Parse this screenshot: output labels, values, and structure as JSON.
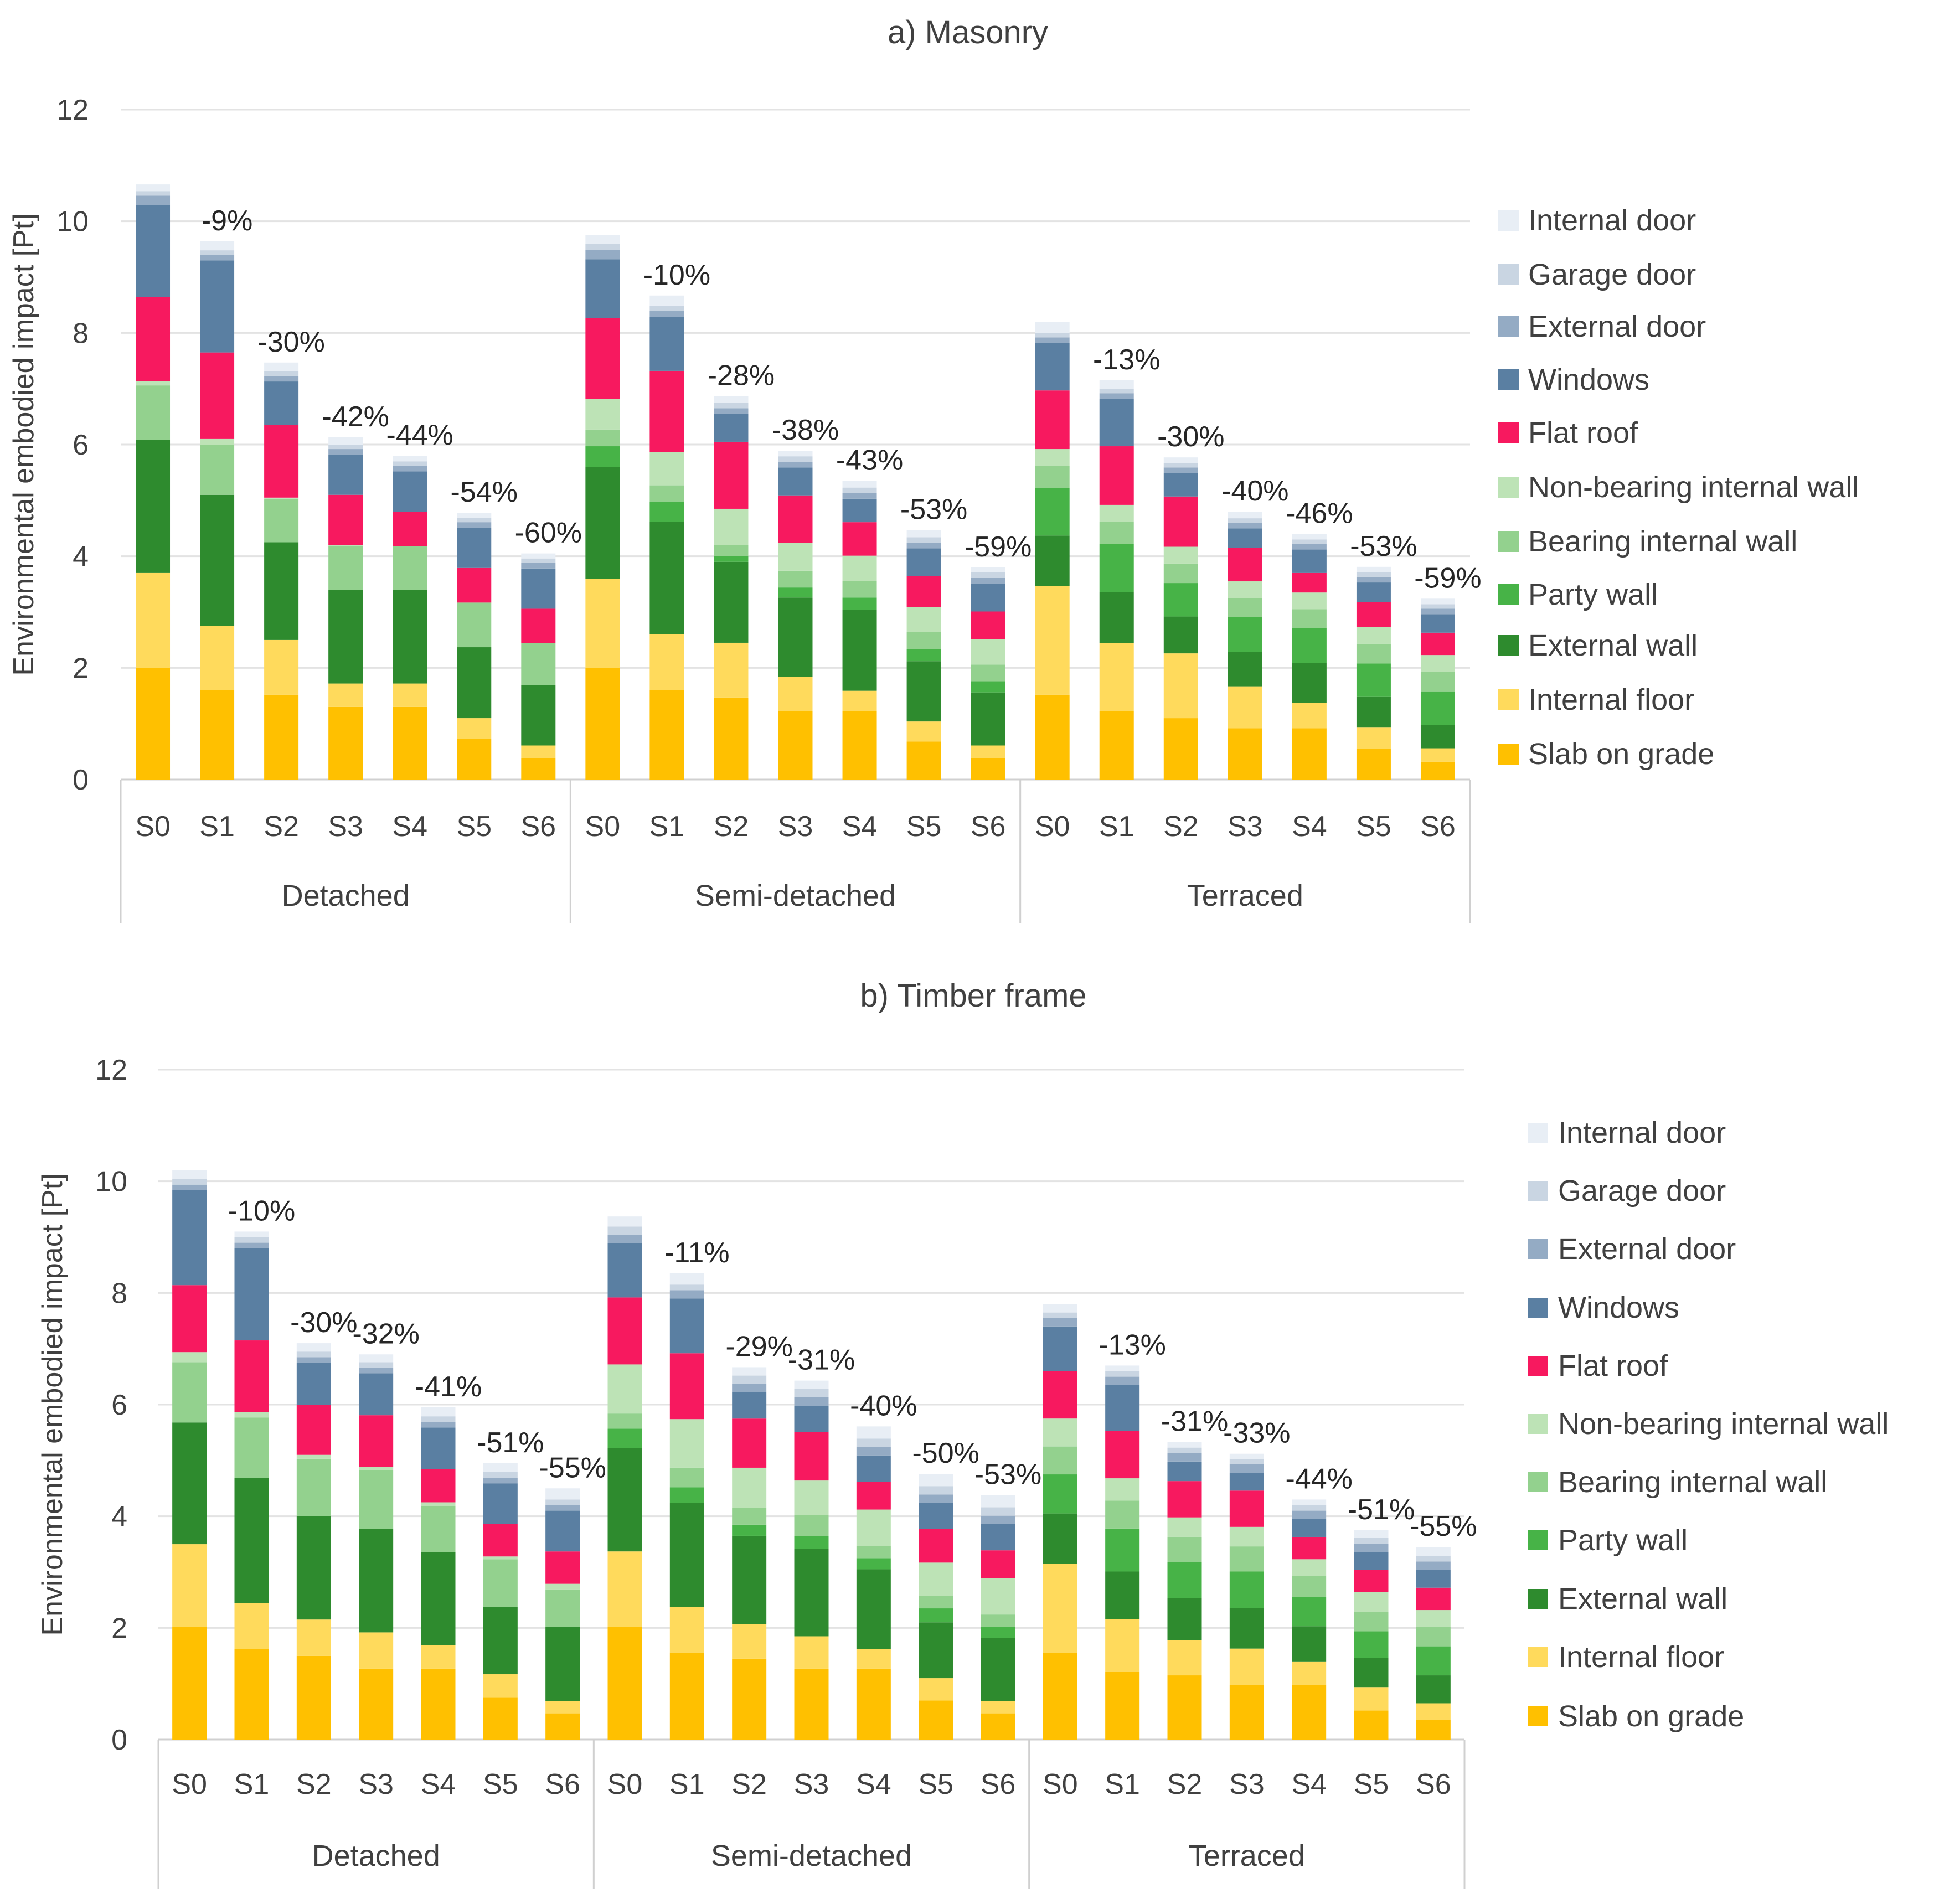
{
  "chart_data": [
    {
      "type": "bar",
      "stacked": true,
      "title": "a) Masonry",
      "ylabel": "Environmental embodied impact [Pt]",
      "ylim": [
        0,
        12
      ],
      "yticks": [
        0,
        2,
        4,
        6,
        8,
        10,
        12
      ],
      "grid": true,
      "legend_position": "right",
      "groups": [
        {
          "name": "Detached",
          "categories": [
            "S0",
            "S1",
            "S2",
            "S3",
            "S4",
            "S5",
            "S6"
          ]
        },
        {
          "name": "Semi-detached",
          "categories": [
            "S0",
            "S1",
            "S2",
            "S3",
            "S4",
            "S5",
            "S6"
          ]
        },
        {
          "name": "Terraced",
          "categories": [
            "S0",
            "S1",
            "S2",
            "S3",
            "S4",
            "S5",
            "S6"
          ]
        }
      ],
      "series": [
        {
          "name": "Slab on grade",
          "color": "#FFC000",
          "values": [
            2.0,
            1.6,
            1.52,
            1.3,
            1.3,
            0.73,
            0.38,
            2.0,
            1.6,
            1.47,
            1.22,
            1.22,
            0.68,
            0.38,
            1.52,
            1.22,
            1.1,
            0.92,
            0.92,
            0.55,
            0.32
          ]
        },
        {
          "name": "Internal floor",
          "color": "#FFDA5C",
          "values": [
            1.7,
            1.15,
            0.98,
            0.42,
            0.42,
            0.37,
            0.23,
            1.6,
            1.0,
            0.98,
            0.62,
            0.37,
            0.36,
            0.23,
            1.95,
            1.22,
            1.16,
            0.75,
            0.45,
            0.38,
            0.24
          ]
        },
        {
          "name": "External wall",
          "color": "#2E8B2E",
          "values": [
            2.38,
            2.35,
            1.75,
            1.68,
            1.68,
            1.27,
            1.08,
            2.0,
            2.02,
            1.45,
            1.42,
            1.45,
            1.08,
            0.95,
            0.9,
            0.92,
            0.66,
            0.62,
            0.72,
            0.55,
            0.42
          ]
        },
        {
          "name": "Party wall",
          "color": "#47B347",
          "values": [
            0,
            0,
            0,
            0,
            0,
            0,
            0,
            0.37,
            0.35,
            0.1,
            0.18,
            0.22,
            0.22,
            0.2,
            0.85,
            0.86,
            0.6,
            0.62,
            0.62,
            0.6,
            0.6
          ]
        },
        {
          "name": "Bearing internal wall",
          "color": "#93D18E",
          "values": [
            0.98,
            0.9,
            0.78,
            0.78,
            0.78,
            0.8,
            0.75,
            0.3,
            0.3,
            0.2,
            0.3,
            0.3,
            0.3,
            0.3,
            0.4,
            0.4,
            0.35,
            0.34,
            0.34,
            0.35,
            0.35
          ]
        },
        {
          "name": "Non-bearing internal wall",
          "color": "#BDE3B6",
          "values": [
            0.08,
            0.1,
            0.02,
            0.02,
            0,
            0,
            0,
            0.55,
            0.6,
            0.65,
            0.5,
            0.45,
            0.45,
            0.45,
            0.3,
            0.3,
            0.3,
            0.3,
            0.3,
            0.3,
            0.3
          ]
        },
        {
          "name": "Flat roof",
          "color": "#F7195F",
          "values": [
            1.5,
            1.55,
            1.3,
            0.9,
            0.62,
            0.62,
            0.62,
            1.45,
            1.45,
            1.2,
            0.85,
            0.6,
            0.55,
            0.5,
            1.05,
            1.05,
            0.9,
            0.6,
            0.35,
            0.45,
            0.4
          ]
        },
        {
          "name": "Windows",
          "color": "#5A7FA2",
          "values": [
            1.65,
            1.65,
            0.78,
            0.72,
            0.72,
            0.72,
            0.72,
            1.05,
            0.97,
            0.5,
            0.5,
            0.42,
            0.5,
            0.5,
            0.85,
            0.85,
            0.42,
            0.35,
            0.42,
            0.35,
            0.33
          ]
        },
        {
          "name": "External door",
          "color": "#94ABC4",
          "values": [
            0.17,
            0.1,
            0.1,
            0.1,
            0.1,
            0.1,
            0.1,
            0.17,
            0.1,
            0.1,
            0.1,
            0.1,
            0.1,
            0.1,
            0.1,
            0.1,
            0.1,
            0.1,
            0.1,
            0.1,
            0.1
          ]
        },
        {
          "name": "Garage door",
          "color": "#C9D5E2",
          "values": [
            0.08,
            0.08,
            0.08,
            0.08,
            0.08,
            0.08,
            0.08,
            0.1,
            0.1,
            0.1,
            0.1,
            0.1,
            0.1,
            0.1,
            0.08,
            0.08,
            0.08,
            0.08,
            0.08,
            0.08,
            0.08
          ]
        },
        {
          "name": "Internal door",
          "color": "#E8EEF5",
          "values": [
            0.12,
            0.16,
            0.16,
            0.13,
            0.1,
            0.09,
            0.09,
            0.16,
            0.18,
            0.12,
            0.1,
            0.12,
            0.13,
            0.09,
            0.2,
            0.15,
            0.1,
            0.12,
            0.1,
            0.1,
            0.1
          ]
        }
      ],
      "annotations": [
        "",
        "-9%",
        "-30%",
        "-42%",
        "-44%",
        "-54%",
        "-60%",
        "",
        "-10%",
        "-28%",
        "-38%",
        "-43%",
        "-53%",
        "-59%",
        "",
        "-13%",
        "-30%",
        "-40%",
        "-46%",
        "-53%",
        "-59%"
      ]
    },
    {
      "type": "bar",
      "stacked": true,
      "title": "b) Timber frame",
      "ylabel": "Environmental embodied impact [Pt]",
      "ylim": [
        0,
        12
      ],
      "yticks": [
        0,
        2,
        4,
        6,
        8,
        10,
        12
      ],
      "grid": true,
      "legend_position": "right",
      "groups": [
        {
          "name": "Detached",
          "categories": [
            "S0",
            "S1",
            "S2",
            "S3",
            "S4",
            "S5",
            "S6"
          ]
        },
        {
          "name": "Semi-detached",
          "categories": [
            "S0",
            "S1",
            "S2",
            "S3",
            "S4",
            "S5",
            "S6"
          ]
        },
        {
          "name": "Terraced",
          "categories": [
            "S0",
            "S1",
            "S2",
            "S3",
            "S4",
            "S5",
            "S6"
          ]
        }
      ],
      "series": [
        {
          "name": "Slab on grade",
          "color": "#FFC000",
          "values": [
            2.02,
            1.62,
            1.5,
            1.27,
            1.27,
            0.75,
            0.47,
            2.02,
            1.56,
            1.45,
            1.27,
            1.27,
            0.7,
            0.47,
            1.55,
            1.21,
            1.15,
            0.98,
            0.98,
            0.52,
            0.35
          ]
        },
        {
          "name": "Internal floor",
          "color": "#FFDA5C",
          "values": [
            1.48,
            0.82,
            0.65,
            0.65,
            0.42,
            0.42,
            0.22,
            1.35,
            0.82,
            0.62,
            0.58,
            0.35,
            0.4,
            0.22,
            1.6,
            0.95,
            0.63,
            0.65,
            0.42,
            0.42,
            0.3
          ]
        },
        {
          "name": "External wall",
          "color": "#2E8B2E",
          "values": [
            2.18,
            2.25,
            1.85,
            1.85,
            1.67,
            1.21,
            1.33,
            1.85,
            1.86,
            1.58,
            1.57,
            1.43,
            1.0,
            1.13,
            0.9,
            0.85,
            0.75,
            0.73,
            0.63,
            0.52,
            0.5
          ]
        },
        {
          "name": "Party wall",
          "color": "#47B347",
          "values": [
            0,
            0,
            0,
            0,
            0,
            0,
            0,
            0.35,
            0.28,
            0.2,
            0.22,
            0.2,
            0.25,
            0.2,
            0.7,
            0.77,
            0.65,
            0.65,
            0.52,
            0.48,
            0.52
          ]
        },
        {
          "name": "Bearing internal wall",
          "color": "#93D18E",
          "values": [
            1.08,
            1.08,
            1.03,
            1.06,
            0.82,
            0.85,
            0.67,
            0.27,
            0.35,
            0.3,
            0.38,
            0.22,
            0.22,
            0.22,
            0.5,
            0.5,
            0.45,
            0.45,
            0.38,
            0.35,
            0.35
          ]
        },
        {
          "name": "Non-bearing internal wall",
          "color": "#BDE3B6",
          "values": [
            0.18,
            0.1,
            0.07,
            0.05,
            0.07,
            0.05,
            0.1,
            0.88,
            0.87,
            0.72,
            0.62,
            0.65,
            0.6,
            0.65,
            0.5,
            0.4,
            0.35,
            0.35,
            0.3,
            0.35,
            0.3
          ]
        },
        {
          "name": "Flat roof",
          "color": "#F7195F",
          "values": [
            1.2,
            1.28,
            0.9,
            0.93,
            0.59,
            0.58,
            0.58,
            1.2,
            1.18,
            0.88,
            0.87,
            0.5,
            0.6,
            0.5,
            0.85,
            0.85,
            0.65,
            0.65,
            0.4,
            0.4,
            0.4
          ]
        },
        {
          "name": "Windows",
          "color": "#5A7FA2",
          "values": [
            1.7,
            1.65,
            0.75,
            0.75,
            0.75,
            0.73,
            0.73,
            0.97,
            0.98,
            0.47,
            0.47,
            0.47,
            0.47,
            0.47,
            0.8,
            0.82,
            0.35,
            0.32,
            0.32,
            0.32,
            0.32
          ]
        },
        {
          "name": "External door",
          "color": "#94ABC4",
          "values": [
            0.1,
            0.1,
            0.1,
            0.1,
            0.1,
            0.1,
            0.1,
            0.15,
            0.15,
            0.15,
            0.15,
            0.15,
            0.15,
            0.15,
            0.15,
            0.15,
            0.15,
            0.15,
            0.15,
            0.15,
            0.15
          ]
        },
        {
          "name": "Garage door",
          "color": "#C9D5E2",
          "values": [
            0.1,
            0.1,
            0.1,
            0.1,
            0.1,
            0.1,
            0.1,
            0.15,
            0.1,
            0.15,
            0.15,
            0.15,
            0.15,
            0.15,
            0.1,
            0.1,
            0.1,
            0.1,
            0.1,
            0.1,
            0.1
          ]
        },
        {
          "name": "Internal door",
          "color": "#E8EEF5",
          "values": [
            0.16,
            0.1,
            0.15,
            0.14,
            0.16,
            0.16,
            0.2,
            0.18,
            0.2,
            0.15,
            0.15,
            0.22,
            0.22,
            0.22,
            0.15,
            0.1,
            0.1,
            0.09,
            0.1,
            0.14,
            0.16
          ]
        }
      ],
      "annotations": [
        "",
        "-10%",
        "-30%",
        "-32%",
        "-41%",
        "-51%",
        "-55%",
        "",
        "-11%",
        "-29%",
        "-31%",
        "-40%",
        "-50%",
        "-53%",
        "",
        "-13%",
        "-31%",
        "-33%",
        "-44%",
        "-51%",
        "-55%"
      ]
    }
  ]
}
